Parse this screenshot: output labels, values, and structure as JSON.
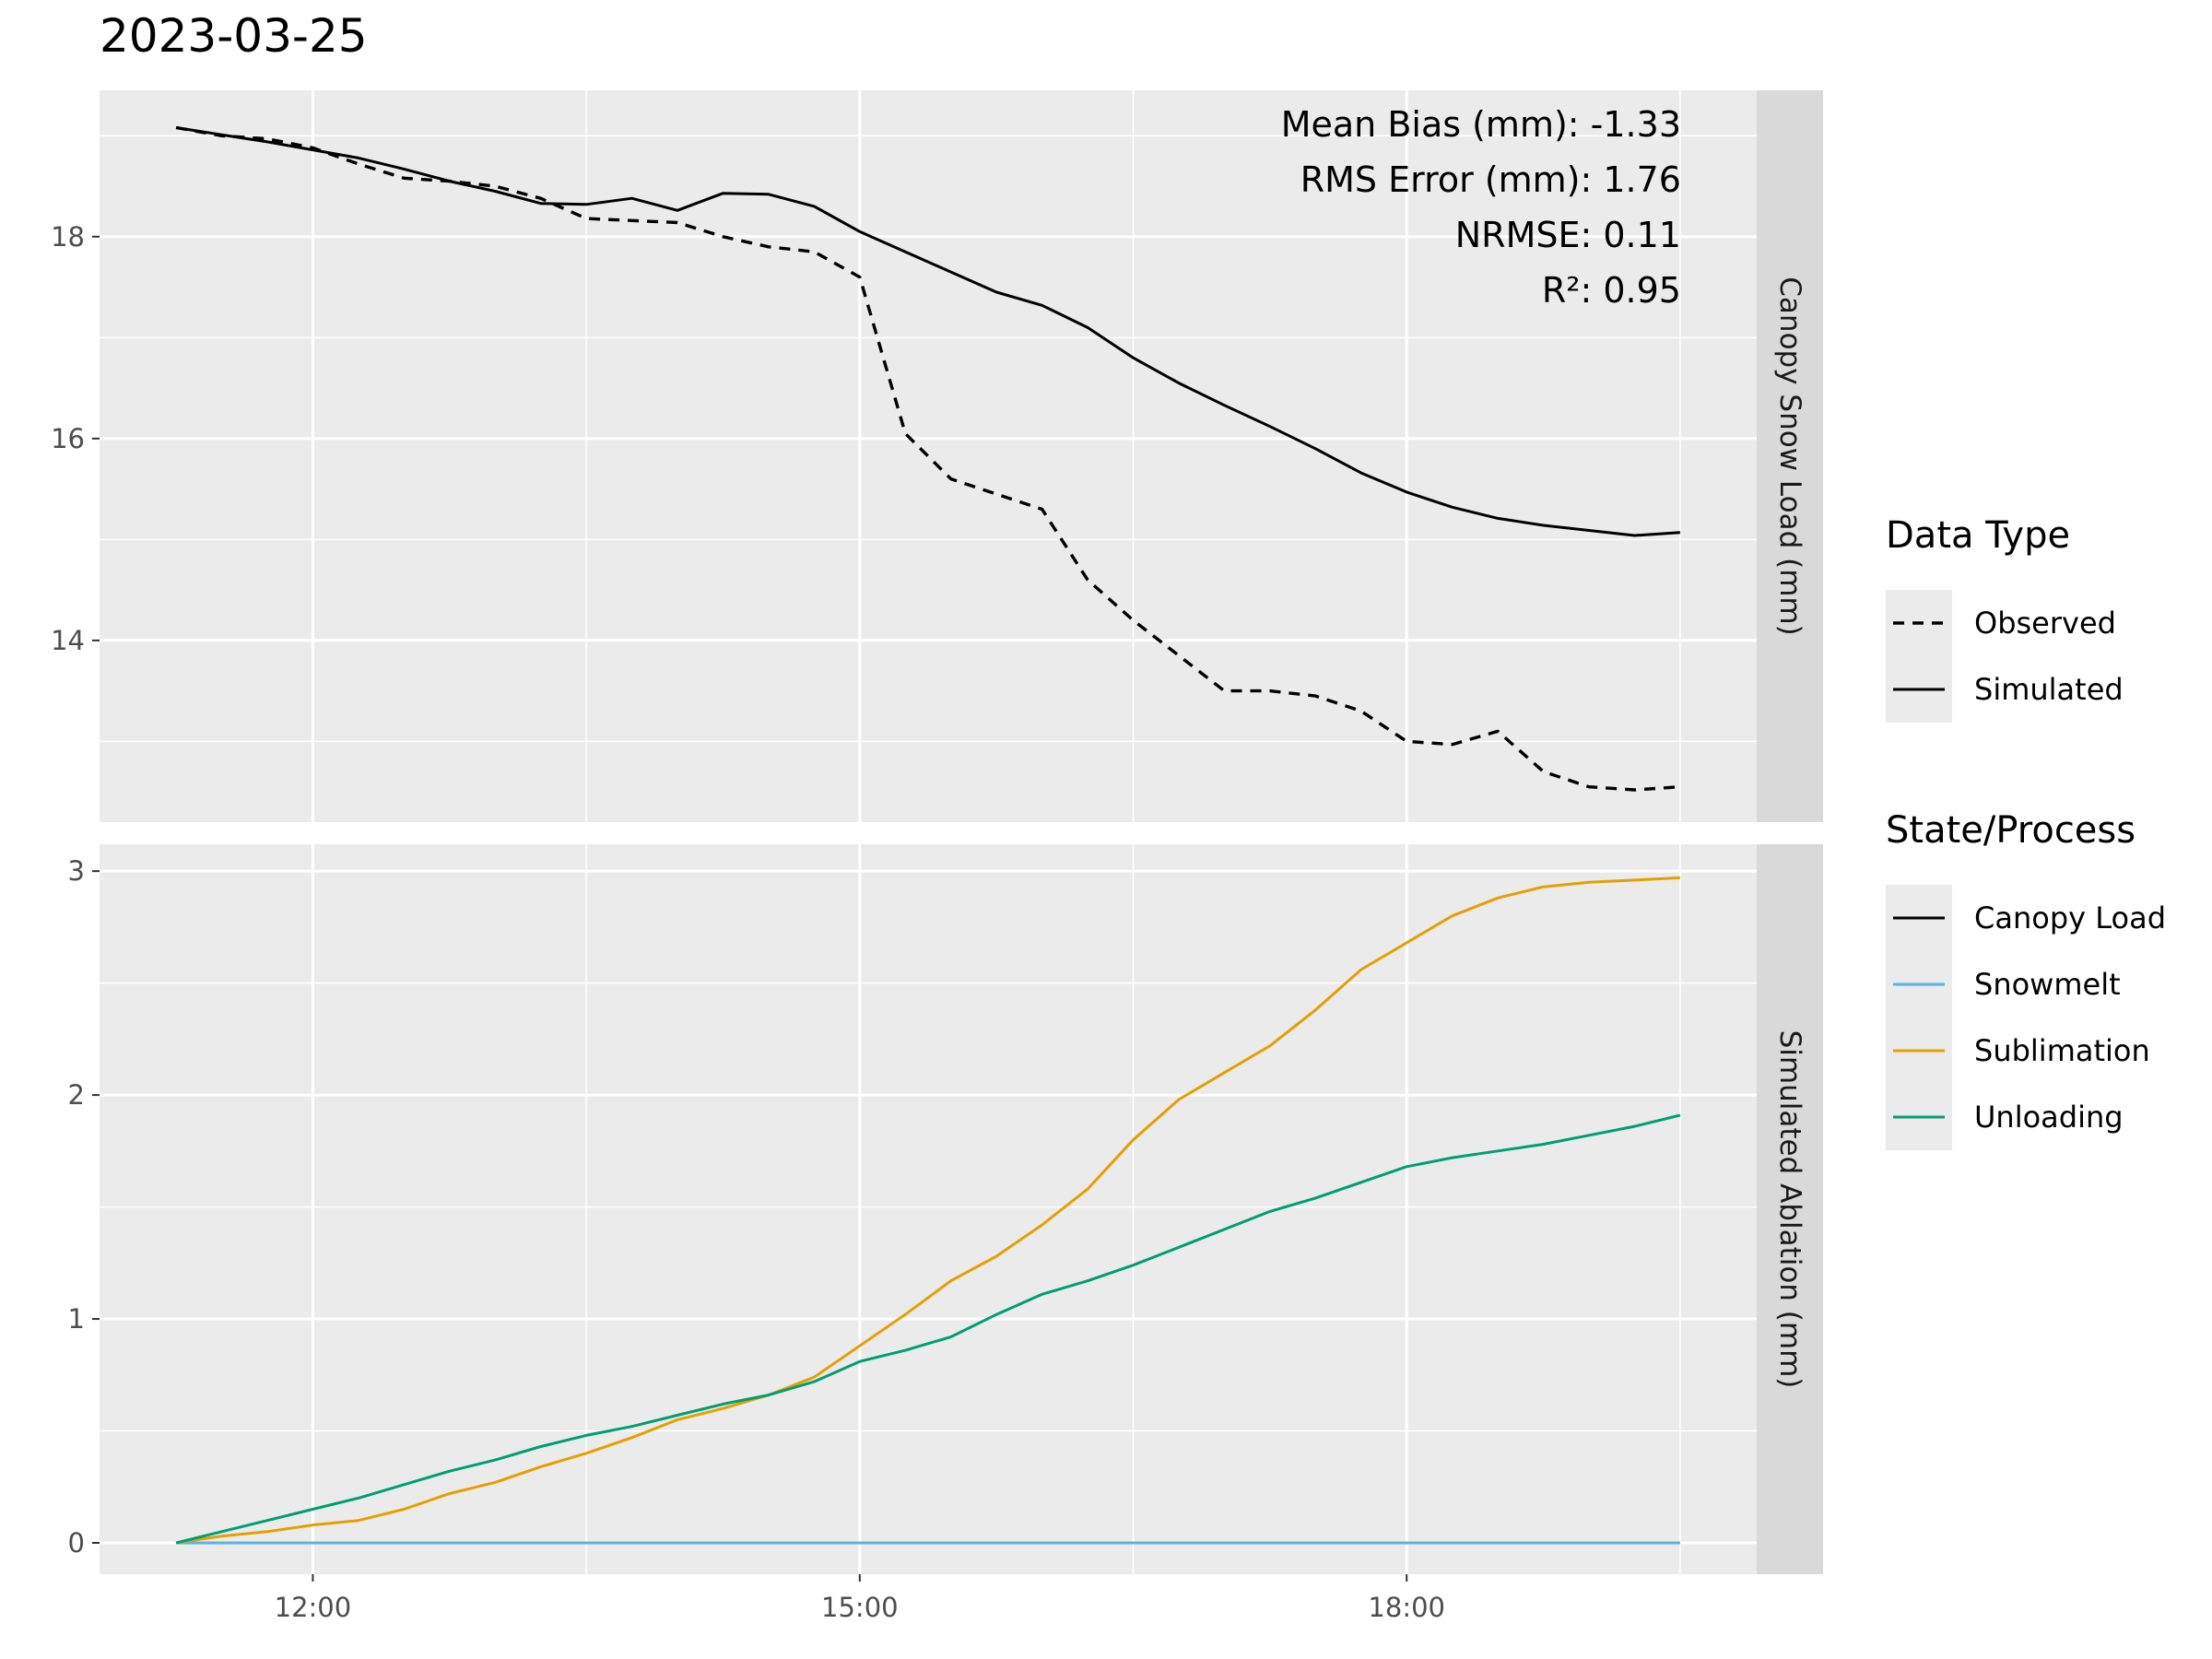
{
  "chart_data": {
    "type": "line",
    "title": "2023-03-25",
    "x_ticks": [
      "12:00",
      "15:00",
      "18:00"
    ],
    "x_tick_values": [
      12.0,
      15.0,
      18.0
    ],
    "xlim": [
      10.83,
      19.92
    ],
    "colors": {
      "Canopy Load": "#000000",
      "Snowmelt": "#56B4E9",
      "Sublimation": "#E69F00",
      "Unloading": "#009E73",
      "panel_bg": "#EBEBEB",
      "strip_bg": "#D9D9D9"
    },
    "panels": [
      {
        "strip_label": "Canopy Snow Load (mm)",
        "ylim": [
          12.2,
          19.45
        ],
        "y_ticks": [
          14,
          16,
          18
        ],
        "y_minor": [
          13,
          15,
          17,
          19
        ],
        "stats": [
          "Mean Bias (mm): -1.33",
          "RMS Error (mm): 1.76",
          "NRMSE: 0.11",
          "R²: 0.95"
        ],
        "series": [
          {
            "name": "Observed",
            "color": "#000000",
            "dash": true,
            "x": [
              11.25,
              11.5,
              11.75,
              12.0,
              12.25,
              12.5,
              12.75,
              13.0,
              13.25,
              13.5,
              13.75,
              14.0,
              14.25,
              14.5,
              14.75,
              15.0,
              15.25,
              15.5,
              15.75,
              16.0,
              16.25,
              16.5,
              16.75,
              17.0,
              17.25,
              17.5,
              17.75,
              18.0,
              18.25,
              18.5,
              18.75,
              19.0,
              19.25,
              19.5
            ],
            "y": [
              19.08,
              19.0,
              18.97,
              18.88,
              18.72,
              18.58,
              18.55,
              18.5,
              18.38,
              18.18,
              18.16,
              18.14,
              18.0,
              17.9,
              17.85,
              17.6,
              16.05,
              15.6,
              15.45,
              15.3,
              14.6,
              14.2,
              13.85,
              13.5,
              13.5,
              13.45,
              13.3,
              13.0,
              12.97,
              13.1,
              12.7,
              12.55,
              12.52,
              12.55
            ]
          },
          {
            "name": "Simulated",
            "color": "#000000",
            "dash": false,
            "x": [
              11.25,
              11.5,
              11.75,
              12.0,
              12.25,
              12.5,
              12.75,
              13.0,
              13.25,
              13.5,
              13.75,
              14.0,
              14.25,
              14.5,
              14.75,
              15.0,
              15.25,
              15.5,
              15.75,
              16.0,
              16.25,
              16.5,
              16.75,
              17.0,
              17.25,
              17.5,
              17.75,
              18.0,
              18.25,
              18.5,
              18.75,
              19.0,
              19.25,
              19.5
            ],
            "y": [
              19.08,
              19.01,
              18.94,
              18.86,
              18.78,
              18.67,
              18.55,
              18.45,
              18.33,
              18.32,
              18.38,
              18.26,
              18.43,
              18.42,
              18.3,
              18.05,
              17.85,
              17.65,
              17.45,
              17.32,
              17.1,
              16.8,
              16.55,
              16.33,
              16.12,
              15.9,
              15.66,
              15.47,
              15.32,
              15.21,
              15.14,
              15.09,
              15.04,
              15.07
            ]
          }
        ]
      },
      {
        "strip_label": "Simulated Ablation (mm)",
        "ylim": [
          -0.14,
          3.12
        ],
        "y_ticks": [
          0,
          1,
          2,
          3
        ],
        "y_minor": [
          0.5,
          1.5,
          2.5
        ],
        "series": [
          {
            "name": "Canopy Load",
            "color": "#000000",
            "dash": false,
            "x": [],
            "y": []
          },
          {
            "name": "Snowmelt",
            "color": "#56B4E9",
            "dash": false,
            "x": [
              11.25,
              19.5
            ],
            "y": [
              0,
              0
            ]
          },
          {
            "name": "Sublimation",
            "color": "#E69F00",
            "dash": false,
            "x": [
              11.25,
              11.5,
              11.75,
              12.0,
              12.25,
              12.5,
              12.75,
              13.0,
              13.25,
              13.5,
              13.75,
              14.0,
              14.25,
              14.5,
              14.75,
              15.0,
              15.25,
              15.5,
              15.75,
              16.0,
              16.25,
              16.5,
              16.75,
              17.0,
              17.25,
              17.5,
              17.75,
              18.0,
              18.25,
              18.5,
              18.75,
              19.0,
              19.25,
              19.5
            ],
            "y": [
              0,
              0.03,
              0.05,
              0.08,
              0.1,
              0.15,
              0.22,
              0.27,
              0.34,
              0.4,
              0.47,
              0.55,
              0.6,
              0.66,
              0.74,
              0.88,
              1.02,
              1.17,
              1.28,
              1.42,
              1.58,
              1.8,
              1.98,
              2.1,
              2.22,
              2.38,
              2.56,
              2.68,
              2.8,
              2.88,
              2.93,
              2.95,
              2.96,
              2.97
            ]
          },
          {
            "name": "Unloading",
            "color": "#009E73",
            "dash": false,
            "x": [
              11.25,
              11.5,
              11.75,
              12.0,
              12.25,
              12.5,
              12.75,
              13.0,
              13.25,
              13.5,
              13.75,
              14.0,
              14.25,
              14.5,
              14.75,
              15.0,
              15.25,
              15.5,
              15.75,
              16.0,
              16.25,
              16.5,
              16.75,
              17.0,
              17.25,
              17.5,
              17.75,
              18.0,
              18.25,
              18.5,
              18.75,
              19.0,
              19.25,
              19.5
            ],
            "y": [
              0,
              0.05,
              0.1,
              0.15,
              0.2,
              0.26,
              0.32,
              0.37,
              0.43,
              0.48,
              0.52,
              0.57,
              0.62,
              0.66,
              0.72,
              0.81,
              0.86,
              0.92,
              1.02,
              1.11,
              1.17,
              1.24,
              1.32,
              1.4,
              1.48,
              1.54,
              1.61,
              1.68,
              1.72,
              1.75,
              1.78,
              1.82,
              1.86,
              1.91
            ]
          }
        ]
      }
    ],
    "legends": [
      {
        "title": "Data Type",
        "items": [
          {
            "label": "Observed",
            "color": "#000000",
            "dash": true
          },
          {
            "label": "Simulated",
            "color": "#000000",
            "dash": false
          }
        ]
      },
      {
        "title": "State/Process",
        "items": [
          {
            "label": "Canopy Load",
            "color": "#000000",
            "dash": false
          },
          {
            "label": "Snowmelt",
            "color": "#56B4E9",
            "dash": false
          },
          {
            "label": "Sublimation",
            "color": "#E69F00",
            "dash": false
          },
          {
            "label": "Unloading",
            "color": "#009E73",
            "dash": false
          }
        ]
      }
    ]
  }
}
